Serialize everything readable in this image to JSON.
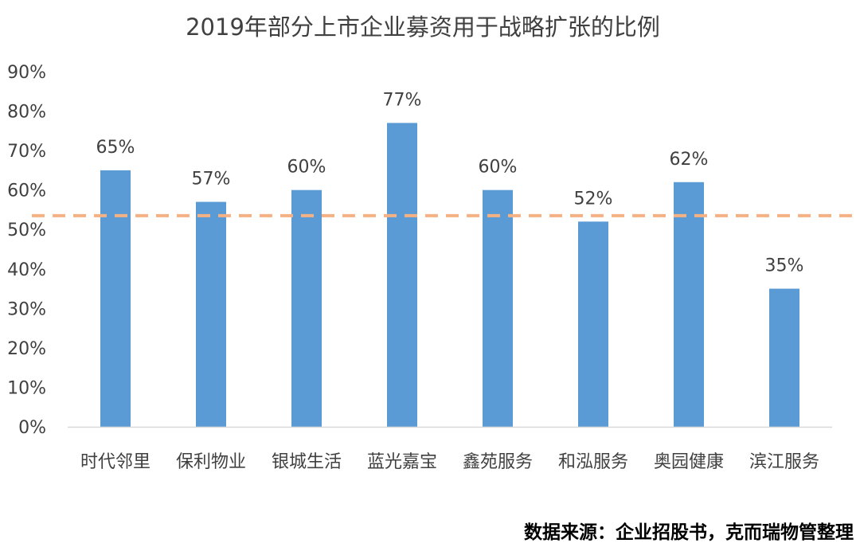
{
  "chart_data": {
    "type": "bar",
    "title": "2019年部分上市企业募资用于战略扩张的比例",
    "categories": [
      "时代邻里",
      "保利物业",
      "银城生活",
      "蓝光嘉宝",
      "鑫苑服务",
      "和泓服务",
      "奥园健康",
      "滨江服务"
    ],
    "values": [
      65,
      57,
      60,
      77,
      60,
      52,
      62,
      35
    ],
    "data_labels": [
      "65%",
      "57%",
      "60%",
      "77%",
      "60%",
      "52%",
      "62%",
      "35%"
    ],
    "y_ticks": [
      0,
      10,
      20,
      30,
      40,
      50,
      60,
      70,
      80,
      90
    ],
    "y_tick_labels": [
      "0%",
      "10%",
      "20%",
      "30%",
      "40%",
      "50%",
      "60%",
      "70%",
      "80%",
      "90%"
    ],
    "ylim": [
      0,
      90
    ],
    "average_line": 53.5,
    "xlabel": "",
    "ylabel": "",
    "grid": false,
    "legend": "none",
    "source": "数据来源：企业招股书，克而瑞物管整理",
    "colors": {
      "bar": "#5b9bd5",
      "average_line": "#f4b183",
      "axis": "#d9d9d9",
      "text": "#404040"
    }
  }
}
